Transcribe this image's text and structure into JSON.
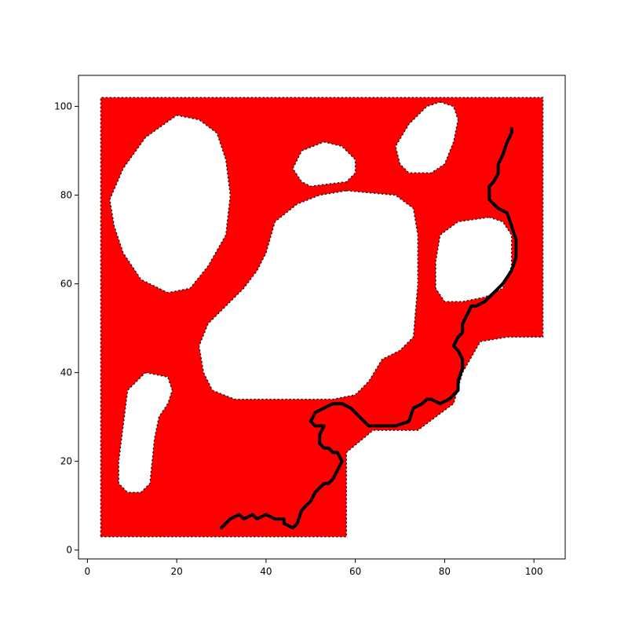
{
  "chart_data": {
    "type": "line",
    "title": "",
    "xlabel": "",
    "ylabel": "",
    "xlim": [
      -2,
      107
    ],
    "ylim": [
      -2,
      107
    ],
    "xticks": [
      0,
      20,
      40,
      60,
      80,
      100
    ],
    "yticks": [
      0,
      20,
      40,
      60,
      80,
      100
    ],
    "xtick_labels": [
      "0",
      "20",
      "40",
      "60",
      "80",
      "100"
    ],
    "ytick_labels": [
      "0",
      "20",
      "40",
      "60",
      "80",
      "100"
    ],
    "grid": false,
    "legend": "none",
    "colors": {
      "region": "#ff0000",
      "path": "#000000",
      "axes": "#000000",
      "background": "#ffffff"
    },
    "region_boundary": [
      [
        3,
        3
      ],
      [
        58,
        3
      ],
      [
        58,
        22
      ],
      [
        64,
        27
      ],
      [
        74,
        27
      ],
      [
        82,
        33
      ],
      [
        84,
        40
      ],
      [
        88,
        47
      ],
      [
        94,
        48
      ],
      [
        102,
        48
      ],
      [
        102,
        102
      ],
      [
        3,
        102
      ]
    ],
    "obstacles": [
      {
        "name": "obstacle-top-left",
        "outline": [
          [
            20,
            98
          ],
          [
            25,
            97
          ],
          [
            29,
            94
          ],
          [
            31,
            88
          ],
          [
            32,
            80
          ],
          [
            31,
            71
          ],
          [
            27,
            64
          ],
          [
            23,
            59
          ],
          [
            18,
            58
          ],
          [
            12,
            61
          ],
          [
            8,
            67
          ],
          [
            6,
            73
          ],
          [
            5,
            79
          ],
          [
            8,
            86
          ],
          [
            13,
            93
          ]
        ]
      },
      {
        "name": "obstacle-top-middle",
        "outline": [
          [
            53,
            92
          ],
          [
            57,
            91
          ],
          [
            60,
            88
          ],
          [
            60,
            85
          ],
          [
            58,
            83
          ],
          [
            50,
            82
          ],
          [
            48,
            83
          ],
          [
            46,
            86
          ],
          [
            48,
            90
          ]
        ]
      },
      {
        "name": "obstacle-top-right",
        "outline": [
          [
            79,
            101
          ],
          [
            82,
            100
          ],
          [
            83,
            97
          ],
          [
            82,
            92
          ],
          [
            80,
            87
          ],
          [
            77,
            85
          ],
          [
            72,
            85
          ],
          [
            70,
            87
          ],
          [
            69,
            91
          ],
          [
            72,
            96
          ],
          [
            76,
            100
          ]
        ]
      },
      {
        "name": "obstacle-center",
        "outline": [
          [
            58,
            81
          ],
          [
            69,
            80
          ],
          [
            73,
            77
          ],
          [
            74,
            71
          ],
          [
            74,
            60
          ],
          [
            73,
            48
          ],
          [
            70,
            45
          ],
          [
            66,
            43
          ],
          [
            63,
            38
          ],
          [
            60,
            35
          ],
          [
            55,
            34
          ],
          [
            40,
            34
          ],
          [
            33,
            34
          ],
          [
            28,
            36
          ],
          [
            26,
            40
          ],
          [
            25,
            46
          ],
          [
            27,
            51
          ],
          [
            31,
            55
          ],
          [
            35,
            59
          ],
          [
            38,
            63
          ],
          [
            40,
            67
          ],
          [
            42,
            74
          ],
          [
            47,
            78
          ],
          [
            52,
            80
          ]
        ]
      },
      {
        "name": "obstacle-right",
        "outline": [
          [
            90,
            75
          ],
          [
            93,
            74
          ],
          [
            95,
            71
          ],
          [
            95,
            64
          ],
          [
            93,
            59
          ],
          [
            89,
            57
          ],
          [
            84,
            56
          ],
          [
            80,
            56
          ],
          [
            78,
            59
          ],
          [
            78,
            65
          ],
          [
            79,
            71
          ],
          [
            83,
            74
          ]
        ]
      },
      {
        "name": "obstacle-bottom-left",
        "outline": [
          [
            13,
            40
          ],
          [
            18,
            39
          ],
          [
            19,
            36
          ],
          [
            18,
            33
          ],
          [
            16,
            30
          ],
          [
            15,
            25
          ],
          [
            14,
            15
          ],
          [
            12,
            13
          ],
          [
            9,
            13
          ],
          [
            7,
            15
          ],
          [
            7,
            20
          ],
          [
            8,
            28
          ],
          [
            9,
            36
          ]
        ]
      }
    ],
    "path": [
      [
        30,
        5
      ],
      [
        32,
        7
      ],
      [
        34,
        8
      ],
      [
        35,
        7
      ],
      [
        37,
        8
      ],
      [
        38,
        7
      ],
      [
        40,
        8
      ],
      [
        42,
        7
      ],
      [
        44,
        7
      ],
      [
        44,
        6
      ],
      [
        46,
        5
      ],
      [
        47,
        6
      ],
      [
        48,
        9
      ],
      [
        50,
        11
      ],
      [
        51,
        13
      ],
      [
        53,
        15
      ],
      [
        54,
        15
      ],
      [
        55,
        16
      ],
      [
        56,
        18
      ],
      [
        57,
        20
      ],
      [
        56,
        22
      ],
      [
        55,
        22
      ],
      [
        54,
        23
      ],
      [
        53,
        23
      ],
      [
        52,
        24
      ],
      [
        52,
        26
      ],
      [
        53,
        28
      ],
      [
        51,
        28
      ],
      [
        50,
        29
      ],
      [
        51,
        31
      ],
      [
        53,
        32
      ],
      [
        55,
        33
      ],
      [
        57,
        33
      ],
      [
        59,
        32
      ],
      [
        61,
        30
      ],
      [
        63,
        28
      ],
      [
        66,
        28
      ],
      [
        69,
        28
      ],
      [
        72,
        29
      ],
      [
        73,
        32
      ],
      [
        75,
        33
      ],
      [
        76,
        34
      ],
      [
        77,
        34
      ],
      [
        79,
        33
      ],
      [
        81,
        34
      ],
      [
        82,
        35
      ],
      [
        83,
        36
      ],
      [
        83,
        38
      ],
      [
        84,
        41
      ],
      [
        84,
        43
      ],
      [
        83,
        45
      ],
      [
        82,
        46
      ],
      [
        83,
        48
      ],
      [
        84,
        49
      ],
      [
        84,
        51
      ],
      [
        85,
        53
      ],
      [
        86,
        55
      ],
      [
        87,
        55
      ],
      [
        89,
        56
      ],
      [
        91,
        58
      ],
      [
        93,
        60
      ],
      [
        95,
        63
      ],
      [
        96,
        66
      ],
      [
        96,
        70
      ],
      [
        95,
        73
      ],
      [
        94,
        76
      ],
      [
        92,
        77
      ],
      [
        91,
        78
      ],
      [
        90,
        79
      ],
      [
        90,
        82
      ],
      [
        91,
        83
      ],
      [
        92,
        85
      ],
      [
        92,
        87
      ],
      [
        93,
        89
      ],
      [
        94,
        92
      ],
      [
        95,
        94
      ],
      [
        95,
        95
      ]
    ]
  }
}
